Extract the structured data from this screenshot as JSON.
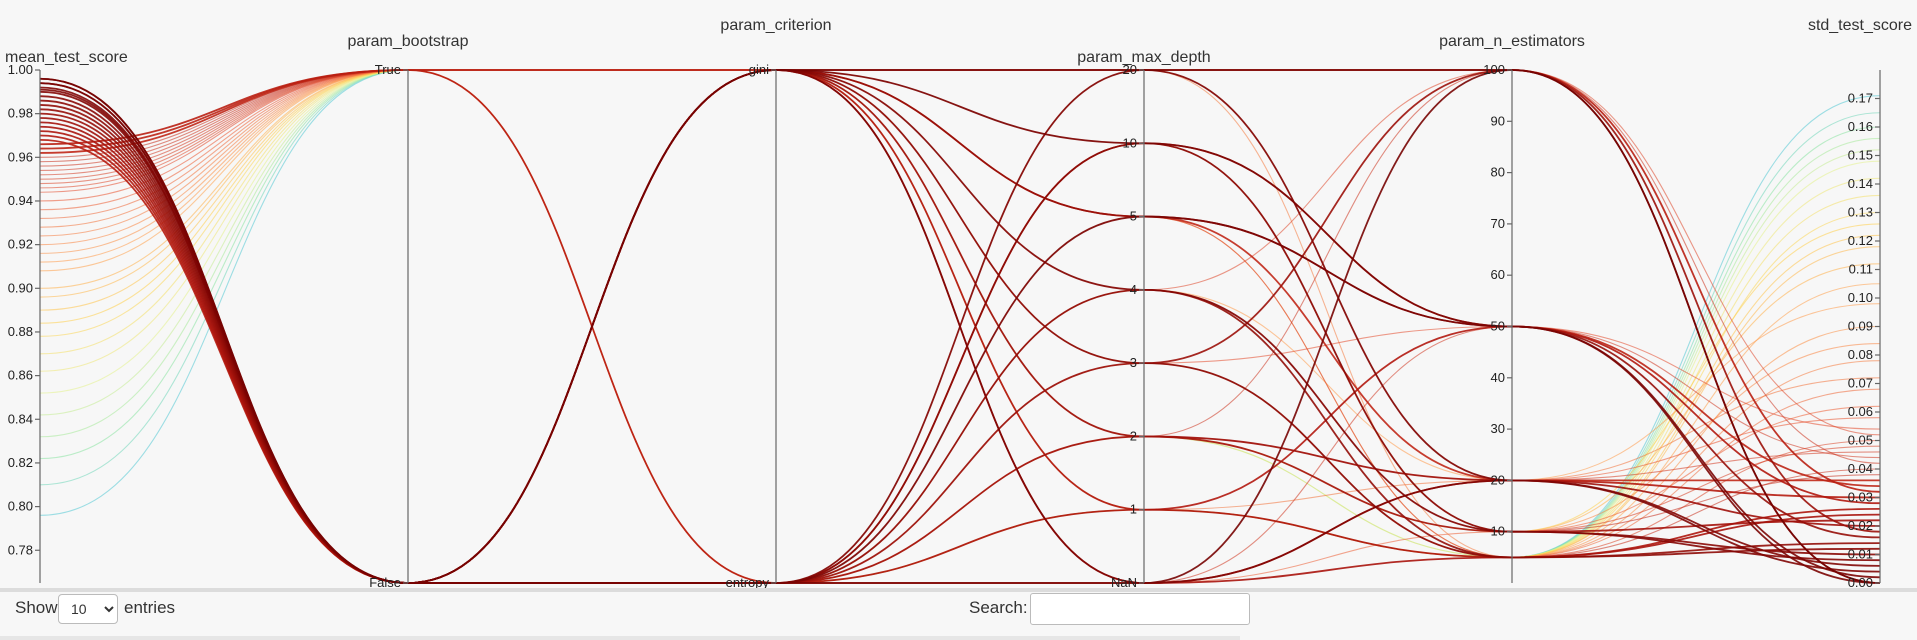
{
  "chart_data": {
    "type": "parallel_coordinates",
    "color_by": "mean_test_score",
    "colorscale": [
      "#3d5fd6",
      "#4ec6d6",
      "#8fe6a0",
      "#e6f28c",
      "#ffd24d",
      "#ff9a4a",
      "#e8512f",
      "#b0160d",
      "#6e0000"
    ],
    "axes": [
      {
        "name": "mean_test_score",
        "kind": "numeric",
        "range": [
          0.765,
          1.0
        ],
        "ticks": [
          "0.78",
          "0.80",
          "0.82",
          "0.84",
          "0.86",
          "0.88",
          "0.90",
          "0.92",
          "0.94",
          "0.96",
          "0.98",
          "1.00"
        ]
      },
      {
        "name": "param_bootstrap",
        "kind": "categorical",
        "ticks": [
          "True",
          "False"
        ]
      },
      {
        "name": "param_criterion",
        "kind": "categorical",
        "ticks": [
          "gini",
          "entropy"
        ]
      },
      {
        "name": "param_max_depth",
        "kind": "categorical",
        "ticks": [
          "20",
          "10",
          "5",
          "4",
          "3",
          "2",
          "1",
          "NaN"
        ]
      },
      {
        "name": "param_n_estimators",
        "kind": "numeric",
        "range": [
          0,
          100
        ],
        "ticks": [
          "10",
          "20",
          "30",
          "40",
          "50",
          "60",
          "70",
          "80",
          "90",
          "100"
        ]
      },
      {
        "name": "std_test_score",
        "kind": "numeric",
        "range": [
          0,
          0.18
        ],
        "ticks": [
          "0.00",
          "0.01",
          "0.02",
          "0.03",
          "0.04",
          "0.05",
          "0.06",
          "0.07",
          "0.08",
          "0.09",
          "0.10",
          "0.11",
          "0.12",
          "0.13",
          "0.14",
          "0.15",
          "0.16",
          "0.17"
        ]
      }
    ],
    "rows": [
      [
        0.996,
        "False",
        "gini",
        "20",
        100,
        0.0
      ],
      [
        0.996,
        "False",
        "entropy",
        "NaN",
        100,
        0.0
      ],
      [
        0.994,
        "False",
        "gini",
        "10",
        50,
        0.0
      ],
      [
        0.994,
        "False",
        "entropy",
        "5",
        50,
        0.002
      ],
      [
        0.992,
        "False",
        "gini",
        "NaN",
        20,
        0.004
      ],
      [
        0.991,
        "False",
        "entropy",
        "20",
        20,
        0.006
      ],
      [
        0.99,
        "False",
        "gini",
        "4",
        10,
        0.008
      ],
      [
        0.988,
        "False",
        "entropy",
        "10",
        10,
        0.01
      ],
      [
        0.986,
        "False",
        "gini",
        "3",
        5,
        0.012
      ],
      [
        0.984,
        "False",
        "entropy",
        "4",
        5,
        0.014
      ],
      [
        0.982,
        "False",
        "gini",
        "5",
        50,
        0.016
      ],
      [
        0.98,
        "False",
        "entropy",
        "3",
        100,
        0.018
      ],
      [
        0.978,
        "False",
        "gini",
        "2",
        20,
        0.02
      ],
      [
        0.976,
        "False",
        "entropy",
        "2",
        10,
        0.022
      ],
      [
        0.974,
        "False",
        "gini",
        "NaN",
        5,
        0.024
      ],
      [
        0.972,
        "False",
        "entropy",
        "1",
        5,
        0.026
      ],
      [
        0.97,
        "False",
        "gini",
        "1",
        50,
        0.028
      ],
      [
        0.968,
        "False",
        "entropy",
        "NaN",
        20,
        0.03
      ],
      [
        0.966,
        "True",
        "gini",
        "20",
        100,
        0.032
      ],
      [
        0.964,
        "True",
        "entropy",
        "10",
        50,
        0.034
      ],
      [
        0.962,
        "True",
        "gini",
        "5",
        20,
        0.036
      ],
      [
        0.96,
        "True",
        "entropy",
        "4",
        10,
        0.038
      ],
      [
        0.958,
        "True",
        "gini",
        "3",
        5,
        0.04
      ],
      [
        0.956,
        "True",
        "entropy",
        "2",
        100,
        0.042
      ],
      [
        0.954,
        "True",
        "gini",
        "NaN",
        50,
        0.044
      ],
      [
        0.952,
        "True",
        "entropy",
        "20",
        20,
        0.046
      ],
      [
        0.95,
        "True",
        "gini",
        "10",
        10,
        0.048
      ],
      [
        0.948,
        "True",
        "entropy",
        "5",
        5,
        0.05
      ],
      [
        0.946,
        "True",
        "gini",
        "4",
        100,
        0.052
      ],
      [
        0.944,
        "True",
        "entropy",
        "3",
        50,
        0.054
      ],
      [
        0.94,
        "True",
        "gini",
        "2",
        20,
        0.058
      ],
      [
        0.936,
        "True",
        "entropy",
        "NaN",
        10,
        0.062
      ],
      [
        0.932,
        "True",
        "gini",
        "1",
        5,
        0.068
      ],
      [
        0.928,
        "True",
        "entropy",
        "1",
        20,
        0.072
      ],
      [
        0.924,
        "True",
        "gini",
        "20",
        5,
        0.078
      ],
      [
        0.92,
        "True",
        "entropy",
        "10",
        10,
        0.084
      ],
      [
        0.916,
        "True",
        "gini",
        "5",
        5,
        0.09
      ],
      [
        0.912,
        "True",
        "entropy",
        "4",
        20,
        0.098
      ],
      [
        0.908,
        "True",
        "gini",
        "3",
        5,
        0.105
      ],
      [
        0.9,
        "True",
        "entropy",
        "2",
        10,
        0.112
      ],
      [
        0.896,
        "True",
        "gini",
        "1",
        5,
        0.118
      ],
      [
        0.89,
        "True",
        "entropy",
        "1",
        5,
        0.122
      ],
      [
        0.884,
        "True",
        "gini",
        "2",
        10,
        0.126
      ],
      [
        0.878,
        "True",
        "entropy",
        "1",
        5,
        0.13
      ],
      [
        0.87,
        "True",
        "gini",
        "1",
        5,
        0.136
      ],
      [
        0.862,
        "True",
        "entropy",
        "2",
        5,
        0.142
      ],
      [
        0.852,
        "True",
        "gini",
        "1",
        5,
        0.148
      ],
      [
        0.842,
        "True",
        "entropy",
        "1",
        5,
        0.152
      ],
      [
        0.832,
        "True",
        "gini",
        "2",
        5,
        0.156
      ],
      [
        0.822,
        "True",
        "entropy",
        "1",
        5,
        0.16
      ],
      [
        0.81,
        "True",
        "gini",
        "1",
        5,
        0.165
      ],
      [
        0.796,
        "True",
        "entropy",
        "1",
        5,
        0.171
      ]
    ]
  },
  "controls": {
    "show_label": "Show",
    "entries_value": "10",
    "entries_label": "entries",
    "search_label": "Search:",
    "search_value": ""
  }
}
